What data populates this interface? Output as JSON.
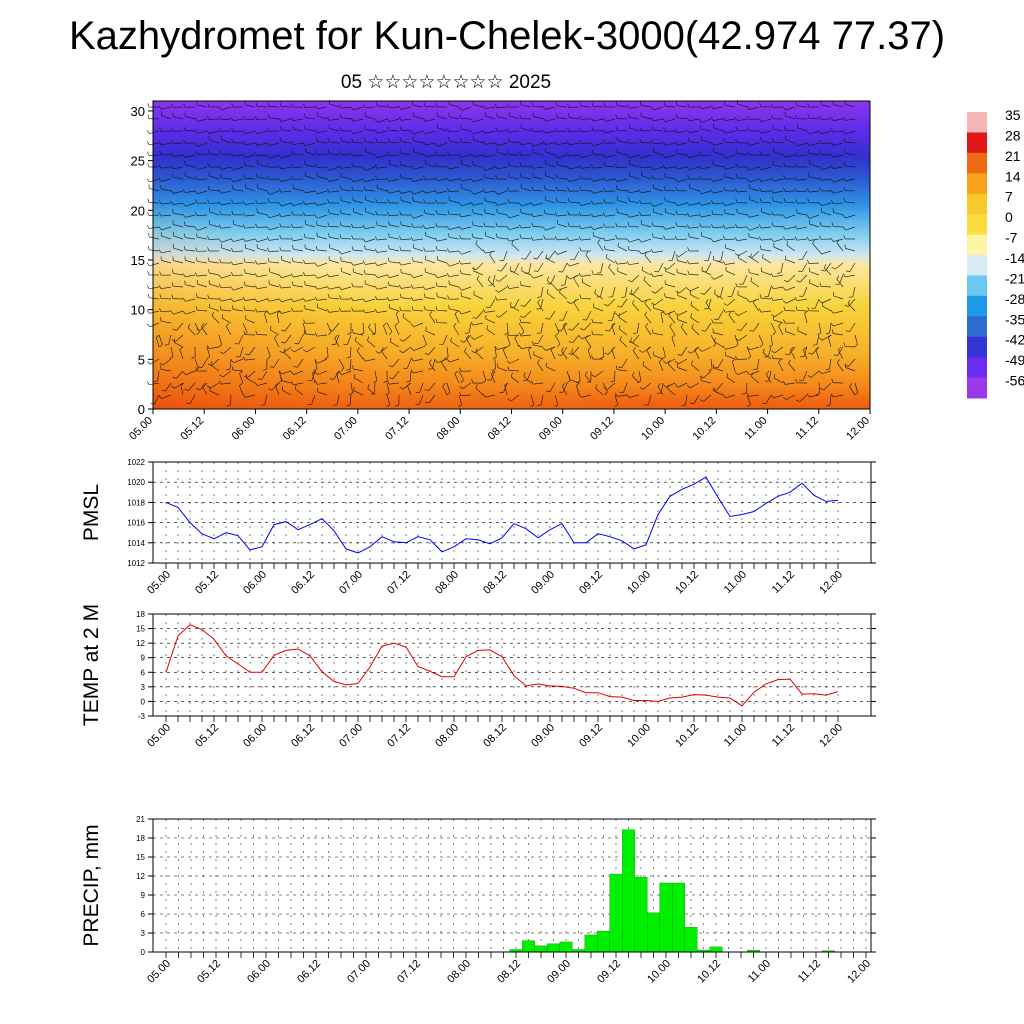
{
  "header": {
    "title": "Kazhydromet for Kun-Chelek-3000(42.974 77.37)",
    "subtitle": "05 ☆☆☆☆☆☆☆☆ 2025"
  },
  "chart_data": [
    {
      "type": "heatmap",
      "title": "Kazhydromet for Kun-Chelek-3000(42.974 77.37)",
      "subtitle": "05 ☆☆☆☆☆☆☆☆ 2025",
      "xlabel": "",
      "ylabel": "",
      "x_tick_labels": [
        "05.00",
        "05.12",
        "06.00",
        "06.12",
        "07.00",
        "07.12",
        "08.00",
        "08.12",
        "09.00",
        "09.12",
        "10.00",
        "10.12",
        "11.00",
        "11.12",
        "12.00"
      ],
      "y_ticks": [
        0,
        5,
        10,
        15,
        20,
        25,
        30
      ],
      "ylim": [
        0,
        31
      ],
      "colorbar_labels": [
        "35",
        "28",
        "21",
        "14",
        "7",
        "0",
        "-7",
        "-14",
        "-21",
        "-28",
        "-35",
        "-42",
        "-49",
        "-56"
      ],
      "colorbar_values": [
        35,
        28,
        21,
        14,
        7,
        0,
        -7,
        -14,
        -21,
        -28,
        -35,
        -42,
        -49,
        -56
      ],
      "colors": [
        "#f6b6b6",
        "#e21818",
        "#ef6a14",
        "#f7a21a",
        "#f9c82a",
        "#fbdc3c",
        "#fdf4a4",
        "#d7ecf6",
        "#6cc8f0",
        "#1e9ae8",
        "#2c6cd0",
        "#3434d8",
        "#6a2cf0",
        "#9b38ec"
      ],
      "temperature_profile_by_height": [
        {
          "level": 0,
          "value": 14
        },
        {
          "level": 5,
          "value": 7
        },
        {
          "level": 10,
          "value": 2
        },
        {
          "level": 15,
          "value": -7
        },
        {
          "level": 20,
          "value": -28
        },
        {
          "level": 25,
          "value": -49
        },
        {
          "level": 30,
          "value": -56
        }
      ],
      "grid": false,
      "overlay": "wind-barbs"
    },
    {
      "type": "line",
      "ylabel": "PMSL",
      "ylim": [
        1012,
        1022
      ],
      "y_ticks": [
        1012,
        1014,
        1016,
        1018,
        1020,
        1022
      ],
      "x_tick_labels": [
        "05.00",
        "05.12",
        "06.00",
        "06.12",
        "07.00",
        "07.12",
        "08.00",
        "08.12",
        "09.00",
        "09.12",
        "10.00",
        "10.12",
        "11.00",
        "11.12",
        "12.00"
      ],
      "color": "#0000ff",
      "grid": true,
      "values": [
        1018.0,
        1017.5,
        1016.0,
        1014.9,
        1014.4,
        1015.0,
        1014.7,
        1013.3,
        1013.6,
        1015.8,
        1016.1,
        1015.3,
        1015.8,
        1016.4,
        1015.2,
        1013.4,
        1013.0,
        1013.6,
        1014.6,
        1014.1,
        1014.0,
        1014.6,
        1014.3,
        1013.1,
        1013.6,
        1014.4,
        1014.3,
        1013.9,
        1014.5,
        1015.9,
        1015.4,
        1014.5,
        1015.3,
        1015.9,
        1014.0,
        1014.0,
        1014.9,
        1014.6,
        1014.2,
        1013.4,
        1013.8,
        1016.8,
        1018.6,
        1019.3,
        1019.8,
        1020.5,
        1018.5,
        1016.6,
        1016.8,
        1017.1,
        1017.9,
        1018.6,
        1019.0,
        1019.9,
        1018.7,
        1018.1,
        1018.2
      ]
    },
    {
      "type": "line",
      "ylabel": "TEMP at 2 M",
      "ylim": [
        -3,
        18
      ],
      "y_ticks": [
        -3,
        0,
        3,
        6,
        9,
        12,
        15,
        18
      ],
      "x_tick_labels": [
        "05.00",
        "05.12",
        "06.00",
        "06.12",
        "07.00",
        "07.12",
        "08.00",
        "08.12",
        "09.00",
        "09.12",
        "10.00",
        "10.12",
        "11.00",
        "11.12",
        "12.00"
      ],
      "color": "#e00000",
      "grid": true,
      "values": [
        6.0,
        13.5,
        15.8,
        14.8,
        12.8,
        9.4,
        7.7,
        6.0,
        6.0,
        9.5,
        10.5,
        10.8,
        9.4,
        6.1,
        4.1,
        3.4,
        3.7,
        7.1,
        11.4,
        12.0,
        11.2,
        7.2,
        6.2,
        5.1,
        5.1,
        9.2,
        10.5,
        10.6,
        9.2,
        5.3,
        3.2,
        3.6,
        3.2,
        3.1,
        2.7,
        1.8,
        1.8,
        1.0,
        0.9,
        0.2,
        0.2,
        0.0,
        0.7,
        0.9,
        1.4,
        1.3,
        0.9,
        0.7,
        -0.9,
        1.9,
        3.6,
        4.5,
        4.6,
        1.5,
        1.6,
        1.3,
        2.0
      ]
    },
    {
      "type": "bar",
      "ylabel": "PRECIP, mm",
      "ylim": [
        0,
        21
      ],
      "y_ticks": [
        0,
        3,
        6,
        9,
        12,
        15,
        18,
        21
      ],
      "x_tick_labels": [
        "05.00",
        "05.12",
        "06.00",
        "06.12",
        "07.00",
        "07.12",
        "08.00",
        "08.12",
        "09.00",
        "09.12",
        "10.00",
        "10.12",
        "11.00",
        "11.12",
        "12.00"
      ],
      "color": "#00ee00",
      "grid": true,
      "values": [
        0,
        0,
        0,
        0,
        0,
        0,
        0,
        0,
        0,
        0,
        0,
        0,
        0,
        0,
        0,
        0,
        0,
        0,
        0,
        0,
        0,
        0,
        0,
        0,
        0,
        0,
        0,
        0,
        0.4,
        1.8,
        1.0,
        1.3,
        1.6,
        0.4,
        2.7,
        3.3,
        12.3,
        19.3,
        11.8,
        6.2,
        10.9,
        10.9,
        3.9,
        0.3,
        0.8,
        0,
        0,
        0.3,
        0,
        0,
        0,
        0,
        0,
        0.2,
        0,
        0,
        0
      ]
    }
  ]
}
